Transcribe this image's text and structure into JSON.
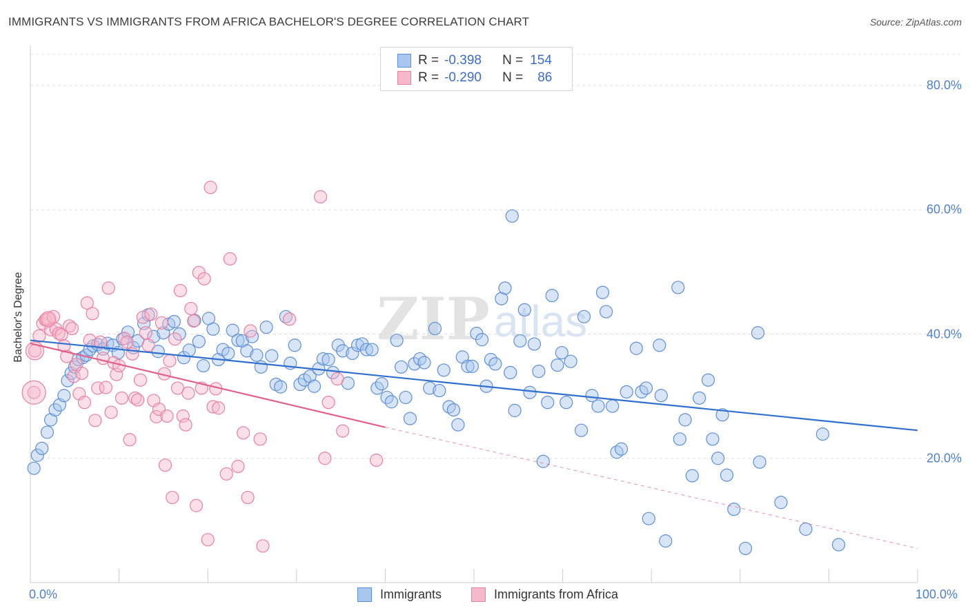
{
  "title": "IMMIGRANTS VS IMMIGRANTS FROM AFRICA BACHELOR'S DEGREE CORRELATION CHART",
  "source": "Source: ZipAtlas.com",
  "watermark": {
    "zip": "ZIP",
    "atlas": "atlas"
  },
  "legend": {
    "rows": [
      {
        "r_label": "R =",
        "r_value": "-0.398",
        "n_label": "N =",
        "n_value": "154"
      },
      {
        "r_label": "R =",
        "r_value": "-0.290",
        "n_label": "N =",
        "n_value": "86"
      }
    ]
  },
  "colors": {
    "blue_fill": "#a9c6ee",
    "blue_stroke": "#5d8fd6",
    "blue_line": "#2f6fd0",
    "pink_fill": "#f6b9cc",
    "pink_stroke": "#e9809f",
    "pink_line": "#e35e89"
  },
  "chart_data": {
    "type": "scatter",
    "title": "IMMIGRANTS VS IMMIGRANTS FROM AFRICA BACHELOR'S DEGREE CORRELATION CHART",
    "xlabel": "",
    "ylabel": "Bachelor's Degree",
    "xlim": [
      0,
      100
    ],
    "ylim": [
      0,
      85
    ],
    "x_tick_labels": [
      "0.0%",
      "100.0%"
    ],
    "y_ticks": [
      20,
      40,
      60,
      80
    ],
    "y_tick_labels": [
      "20.0%",
      "40.0%",
      "60.0%",
      "80.0%"
    ],
    "grid": true,
    "legend_position": "top-center",
    "series": [
      {
        "name": "Immigrants",
        "r": -0.398,
        "n": 154,
        "trend": {
          "x0": 0,
          "y0": 39.0,
          "x1": 100,
          "y1": 24.5
        },
        "points": [
          [
            0.4,
            18.4
          ],
          [
            0.8,
            20.5
          ],
          [
            1.3,
            21.6
          ],
          [
            1.9,
            24.2
          ],
          [
            2.3,
            26.2
          ],
          [
            2.8,
            27.8
          ],
          [
            3.3,
            28.6
          ],
          [
            3.8,
            30.1
          ],
          [
            4.2,
            32.5
          ],
          [
            4.6,
            33.7
          ],
          [
            5.0,
            34.7
          ],
          [
            5.4,
            35.9
          ],
          [
            5.9,
            36.2
          ],
          [
            6.3,
            36.6
          ],
          [
            6.7,
            37.5
          ],
          [
            7.1,
            38.1
          ],
          [
            7.6,
            38.3
          ],
          [
            8.2,
            37.6
          ],
          [
            8.7,
            38.5
          ],
          [
            9.3,
            38.2
          ],
          [
            9.9,
            37.0
          ],
          [
            10.4,
            39.2
          ],
          [
            11.0,
            40.3
          ],
          [
            11.6,
            37.8
          ],
          [
            12.1,
            38.9
          ],
          [
            12.8,
            41.7
          ],
          [
            13.3,
            43.1
          ],
          [
            13.9,
            39.6
          ],
          [
            14.4,
            37.2
          ],
          [
            15.0,
            40.2
          ],
          [
            15.6,
            41.6
          ],
          [
            16.2,
            42.0
          ],
          [
            16.8,
            40.0
          ],
          [
            17.3,
            36.2
          ],
          [
            17.9,
            37.4
          ],
          [
            18.5,
            42.2
          ],
          [
            19.0,
            38.8
          ],
          [
            19.5,
            34.9
          ],
          [
            20.1,
            42.5
          ],
          [
            20.6,
            40.8
          ],
          [
            21.2,
            35.9
          ],
          [
            21.7,
            37.5
          ],
          [
            22.3,
            36.9
          ],
          [
            22.8,
            40.6
          ],
          [
            23.4,
            39.0
          ],
          [
            23.9,
            38.9
          ],
          [
            24.4,
            37.3
          ],
          [
            25.0,
            39.6
          ],
          [
            25.5,
            36.6
          ],
          [
            26.0,
            34.7
          ],
          [
            26.6,
            41.1
          ],
          [
            27.2,
            36.5
          ],
          [
            27.7,
            31.9
          ],
          [
            28.2,
            31.5
          ],
          [
            28.8,
            42.8
          ],
          [
            29.3,
            35.3
          ],
          [
            29.8,
            38.2
          ],
          [
            30.4,
            31.9
          ],
          [
            30.9,
            32.6
          ],
          [
            31.5,
            33.2
          ],
          [
            32.0,
            31.6
          ],
          [
            32.5,
            34.4
          ],
          [
            33.0,
            36.0
          ],
          [
            33.6,
            35.9
          ],
          [
            34.1,
            33.8
          ],
          [
            34.7,
            38.2
          ],
          [
            35.2,
            37.3
          ],
          [
            35.8,
            32.1
          ],
          [
            36.3,
            36.9
          ],
          [
            36.9,
            38.2
          ],
          [
            37.4,
            38.4
          ],
          [
            37.9,
            37.5
          ],
          [
            38.5,
            37.5
          ],
          [
            39.1,
            31.3
          ],
          [
            39.6,
            32.0
          ],
          [
            40.2,
            29.8
          ],
          [
            40.7,
            29.1
          ],
          [
            41.3,
            39.0
          ],
          [
            41.8,
            34.7
          ],
          [
            42.3,
            29.8
          ],
          [
            42.8,
            26.4
          ],
          [
            43.3,
            35.2
          ],
          [
            43.9,
            36.0
          ],
          [
            44.4,
            35.4
          ],
          [
            45.0,
            31.3
          ],
          [
            45.6,
            40.9
          ],
          [
            46.1,
            30.9
          ],
          [
            46.6,
            34.2
          ],
          [
            47.2,
            28.3
          ],
          [
            47.7,
            27.8
          ],
          [
            48.2,
            25.4
          ],
          [
            48.7,
            36.3
          ],
          [
            49.3,
            34.8
          ],
          [
            49.8,
            34.8
          ],
          [
            50.3,
            40.1
          ],
          [
            50.9,
            39.1
          ],
          [
            51.4,
            31.6
          ],
          [
            51.9,
            35.9
          ],
          [
            52.4,
            35.2
          ],
          [
            53.1,
            45.7
          ],
          [
            53.5,
            47.4
          ],
          [
            54.1,
            33.8
          ],
          [
            54.6,
            27.7
          ],
          [
            55.2,
            38.9
          ],
          [
            55.7,
            43.9
          ],
          [
            56.3,
            30.6
          ],
          [
            56.8,
            38.4
          ],
          [
            57.3,
            34.0
          ],
          [
            57.8,
            19.5
          ],
          [
            58.3,
            29.0
          ],
          [
            58.8,
            46.2
          ],
          [
            59.4,
            35.0
          ],
          [
            59.9,
            37.0
          ],
          [
            60.4,
            29.0
          ],
          [
            60.9,
            35.6
          ],
          [
            62.1,
            24.5
          ],
          [
            62.4,
            42.8
          ],
          [
            63.3,
            30.1
          ],
          [
            64.0,
            28.4
          ],
          [
            64.5,
            46.7
          ],
          [
            64.9,
            43.6
          ],
          [
            65.6,
            28.4
          ],
          [
            66.1,
            21.0
          ],
          [
            66.6,
            21.5
          ],
          [
            67.2,
            30.7
          ],
          [
            68.3,
            37.7
          ],
          [
            68.9,
            30.7
          ],
          [
            69.4,
            31.3
          ],
          [
            69.7,
            10.3
          ],
          [
            70.9,
            38.2
          ],
          [
            71.1,
            30.1
          ],
          [
            71.6,
            6.7
          ],
          [
            73.0,
            47.5
          ],
          [
            73.2,
            23.1
          ],
          [
            73.8,
            26.2
          ],
          [
            74.6,
            17.2
          ],
          [
            75.4,
            29.7
          ],
          [
            76.4,
            32.6
          ],
          [
            76.9,
            23.1
          ],
          [
            77.5,
            20.0
          ],
          [
            78.0,
            27.0
          ],
          [
            78.5,
            17.3
          ],
          [
            79.3,
            11.8
          ],
          [
            80.6,
            5.5
          ],
          [
            82.0,
            40.2
          ],
          [
            82.2,
            19.4
          ],
          [
            84.6,
            12.9
          ],
          [
            87.4,
            8.6
          ],
          [
            89.3,
            23.9
          ],
          [
            91.1,
            6.1
          ],
          [
            54.3,
            59.0
          ]
        ]
      },
      {
        "name": "Immigrants from Africa",
        "r": -0.29,
        "n": 86,
        "trend": {
          "x0": 0,
          "y0": 38.5,
          "x1": 40,
          "y1": 25.0
        },
        "trend_dashed": {
          "x0": 40,
          "y0": 25.0,
          "x1": 100,
          "y1": 5.5
        },
        "points": [
          [
            0.4,
            30.6
          ],
          [
            0.5,
            37.3
          ],
          [
            1.0,
            39.7
          ],
          [
            1.4,
            41.7
          ],
          [
            1.7,
            42.3
          ],
          [
            2.0,
            42.4
          ],
          [
            2.3,
            40.7
          ],
          [
            2.6,
            42.8
          ],
          [
            2.9,
            40.8
          ],
          [
            3.2,
            40.1
          ],
          [
            3.5,
            39.9
          ],
          [
            3.8,
            38.1
          ],
          [
            4.1,
            36.4
          ],
          [
            4.4,
            41.3
          ],
          [
            4.7,
            40.9
          ],
          [
            4.9,
            33.2
          ],
          [
            5.2,
            35.1
          ],
          [
            5.5,
            30.4
          ],
          [
            5.8,
            33.7
          ],
          [
            6.1,
            29.0
          ],
          [
            6.4,
            45.0
          ],
          [
            6.7,
            39.0
          ],
          [
            7.0,
            43.3
          ],
          [
            7.3,
            26.1
          ],
          [
            7.6,
            31.3
          ],
          [
            7.9,
            38.7
          ],
          [
            8.2,
            36.1
          ],
          [
            8.5,
            31.4
          ],
          [
            8.8,
            47.4
          ],
          [
            9.1,
            27.4
          ],
          [
            9.4,
            35.4
          ],
          [
            9.7,
            33.5
          ],
          [
            10.0,
            34.9
          ],
          [
            10.3,
            29.7
          ],
          [
            10.6,
            39.3
          ],
          [
            10.9,
            38.7
          ],
          [
            11.2,
            23.0
          ],
          [
            11.5,
            36.8
          ],
          [
            11.8,
            29.7
          ],
          [
            12.1,
            29.4
          ],
          [
            12.4,
            32.6
          ],
          [
            12.7,
            42.7
          ],
          [
            13.0,
            40.2
          ],
          [
            13.3,
            38.2
          ],
          [
            13.6,
            43.2
          ],
          [
            13.9,
            29.3
          ],
          [
            14.2,
            26.7
          ],
          [
            14.5,
            27.9
          ],
          [
            14.8,
            41.8
          ],
          [
            15.1,
            33.6
          ],
          [
            15.4,
            26.8
          ],
          [
            15.7,
            35.7
          ],
          [
            16.0,
            13.7
          ],
          [
            16.3,
            39.2
          ],
          [
            16.6,
            31.3
          ],
          [
            16.9,
            47.0
          ],
          [
            17.2,
            26.8
          ],
          [
            17.5,
            25.4
          ],
          [
            17.8,
            30.5
          ],
          [
            18.1,
            44.1
          ],
          [
            18.4,
            42.1
          ],
          [
            18.7,
            12.4
          ],
          [
            19.0,
            49.9
          ],
          [
            19.3,
            31.3
          ],
          [
            19.6,
            48.9
          ],
          [
            20.0,
            6.9
          ],
          [
            20.3,
            63.6
          ],
          [
            20.6,
            28.3
          ],
          [
            20.9,
            31.2
          ],
          [
            21.2,
            28.1
          ],
          [
            22.1,
            17.5
          ],
          [
            22.5,
            52.1
          ],
          [
            23.4,
            18.7
          ],
          [
            24.0,
            24.1
          ],
          [
            24.5,
            13.7
          ],
          [
            24.8,
            40.5
          ],
          [
            25.9,
            23.1
          ],
          [
            26.2,
            5.9
          ],
          [
            29.2,
            42.4
          ],
          [
            32.7,
            62.1
          ],
          [
            33.2,
            20.0
          ],
          [
            33.6,
            29.0
          ],
          [
            34.6,
            32.8
          ],
          [
            35.2,
            24.4
          ],
          [
            39.0,
            19.7
          ],
          [
            15.2,
            18.9
          ]
        ]
      }
    ]
  }
}
